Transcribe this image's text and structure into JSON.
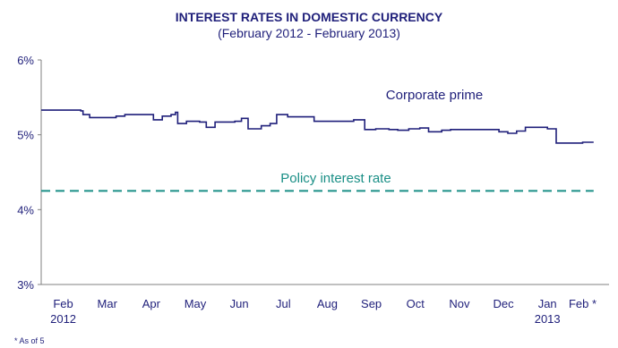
{
  "chart_data": {
    "type": "line",
    "title": "INTEREST RATES IN DOMESTIC CURRENCY",
    "subtitle": "(February 2012 - February 2013)",
    "footnote": "* As of 5",
    "y_ticks": [
      "3%",
      "4%",
      "5%",
      "6%"
    ],
    "ylim": [
      3,
      6
    ],
    "x_ticks": [
      {
        "label": "Feb",
        "sub": "2012",
        "pos": 0.5
      },
      {
        "label": "Mar",
        "sub": "",
        "pos": 1.5
      },
      {
        "label": "Apr",
        "sub": "",
        "pos": 2.5
      },
      {
        "label": "May",
        "sub": "",
        "pos": 3.5
      },
      {
        "label": "Jun",
        "sub": "",
        "pos": 4.5
      },
      {
        "label": "Jul",
        "sub": "",
        "pos": 5.5
      },
      {
        "label": "Aug",
        "sub": "",
        "pos": 6.5
      },
      {
        "label": "Sep",
        "sub": "",
        "pos": 7.5
      },
      {
        "label": "Oct",
        "sub": "",
        "pos": 8.5
      },
      {
        "label": "Nov",
        "sub": "",
        "pos": 9.5
      },
      {
        "label": "Dec",
        "sub": "",
        "pos": 10.5
      },
      {
        "label": "Jan",
        "sub": "2013",
        "pos": 11.5
      },
      {
        "label": "Feb *",
        "sub": "",
        "pos": 12.3
      }
    ],
    "xlim": [
      0,
      12.9
    ],
    "series": [
      {
        "name": "Corporate prime",
        "color": "#1f1f7a",
        "points": [
          [
            0.0,
            5.33
          ],
          [
            0.85,
            5.33
          ],
          [
            0.9,
            5.32
          ],
          [
            0.95,
            5.27
          ],
          [
            1.1,
            5.23
          ],
          [
            1.5,
            5.23
          ],
          [
            1.7,
            5.25
          ],
          [
            1.9,
            5.27
          ],
          [
            2.4,
            5.27
          ],
          [
            2.55,
            5.2
          ],
          [
            2.75,
            5.25
          ],
          [
            2.95,
            5.27
          ],
          [
            3.05,
            5.3
          ],
          [
            3.1,
            5.15
          ],
          [
            3.3,
            5.18
          ],
          [
            3.6,
            5.17
          ],
          [
            3.75,
            5.1
          ],
          [
            3.95,
            5.17
          ],
          [
            4.4,
            5.18
          ],
          [
            4.55,
            5.22
          ],
          [
            4.7,
            5.08
          ],
          [
            5.0,
            5.12
          ],
          [
            5.2,
            5.15
          ],
          [
            5.35,
            5.27
          ],
          [
            5.6,
            5.24
          ],
          [
            5.95,
            5.24
          ],
          [
            6.2,
            5.18
          ],
          [
            6.9,
            5.18
          ],
          [
            7.1,
            5.2
          ],
          [
            7.35,
            5.07
          ],
          [
            7.6,
            5.08
          ],
          [
            7.9,
            5.07
          ],
          [
            8.1,
            5.06
          ],
          [
            8.35,
            5.08
          ],
          [
            8.6,
            5.09
          ],
          [
            8.8,
            5.04
          ],
          [
            9.1,
            5.06
          ],
          [
            9.3,
            5.07
          ],
          [
            9.6,
            5.07
          ],
          [
            10.1,
            5.07
          ],
          [
            10.4,
            5.04
          ],
          [
            10.6,
            5.02
          ],
          [
            10.8,
            5.05
          ],
          [
            11.0,
            5.1
          ],
          [
            11.3,
            5.1
          ],
          [
            11.5,
            5.08
          ],
          [
            11.7,
            4.89
          ],
          [
            12.1,
            4.89
          ],
          [
            12.3,
            4.9
          ],
          [
            12.55,
            4.9
          ]
        ]
      },
      {
        "name": "Policy interest rate",
        "color": "#1a8f86",
        "dashed": true,
        "points": [
          [
            0.0,
            4.25
          ],
          [
            12.55,
            4.25
          ]
        ]
      }
    ]
  }
}
